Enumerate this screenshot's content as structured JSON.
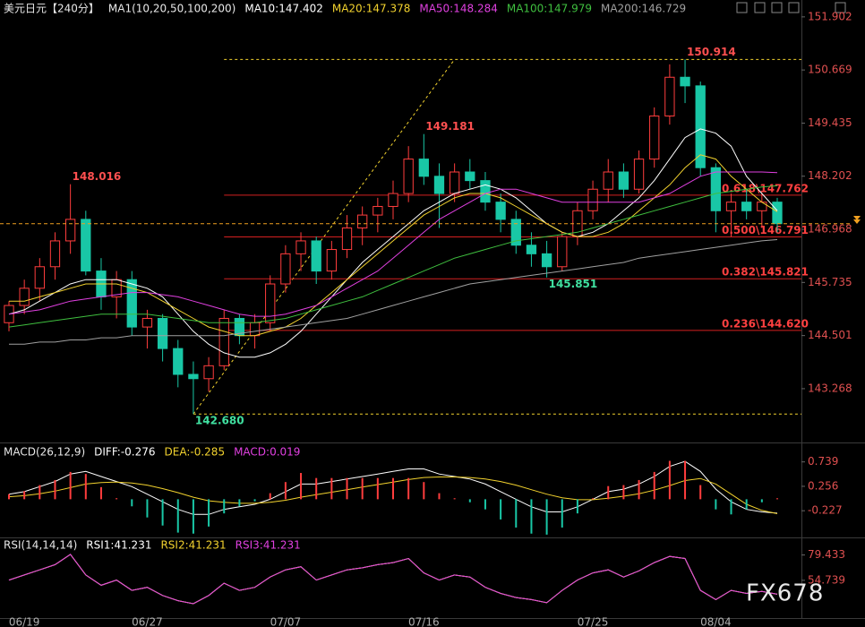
{
  "chart_data": [
    {
      "type": "candlestick",
      "title": "美元日元【240分】",
      "legend_title": "MA1(10,20,50,100,200)",
      "categories": [
        null,
        "06/19",
        null,
        null,
        null,
        null,
        null,
        null,
        null,
        "06/27",
        null,
        null,
        null,
        null,
        null,
        null,
        null,
        null,
        "07/07",
        null,
        null,
        null,
        null,
        null,
        null,
        null,
        null,
        "07/16",
        null,
        null,
        null,
        null,
        null,
        null,
        null,
        null,
        null,
        null,
        "07/25",
        null,
        null,
        null,
        null,
        null,
        null,
        null,
        "08/04",
        null,
        null,
        null,
        null
      ],
      "open": [
        144.8,
        145.2,
        145.6,
        146.1,
        146.7,
        147.2,
        146.0,
        145.4,
        145.8,
        144.7,
        144.9,
        144.2,
        143.6,
        143.5,
        143.8,
        144.9,
        144.5,
        144.8,
        145.7,
        146.4,
        146.7,
        146.0,
        146.5,
        147.0,
        147.3,
        147.5,
        147.8,
        148.6,
        148.2,
        147.8,
        148.3,
        148.1,
        147.6,
        147.2,
        146.6,
        146.4,
        146.1,
        146.8,
        147.4,
        147.9,
        148.3,
        147.9,
        148.6,
        149.6,
        150.5,
        150.3,
        148.4,
        147.4,
        147.6,
        147.4,
        147.6
      ],
      "high": [
        145.3,
        145.8,
        146.3,
        146.9,
        148.016,
        147.4,
        146.3,
        146.0,
        146.0,
        145.1,
        145.0,
        144.4,
        143.9,
        144.0,
        145.1,
        145.0,
        145.0,
        145.9,
        146.6,
        146.9,
        146.8,
        146.7,
        147.3,
        147.5,
        147.7,
        148.1,
        148.9,
        149.181,
        148.5,
        148.5,
        148.6,
        148.3,
        147.8,
        147.4,
        146.9,
        146.7,
        146.9,
        147.6,
        148.1,
        148.6,
        148.5,
        148.8,
        149.8,
        150.8,
        150.914,
        150.4,
        148.5,
        147.8,
        147.9,
        147.8,
        147.7
      ],
      "low": [
        144.6,
        145.0,
        145.3,
        145.8,
        146.4,
        145.9,
        145.1,
        144.9,
        144.5,
        144.2,
        143.9,
        143.3,
        142.68,
        143.2,
        143.7,
        144.3,
        144.2,
        144.6,
        145.5,
        146.0,
        145.7,
        145.8,
        146.3,
        146.6,
        146.9,
        147.2,
        147.6,
        148.0,
        147.0,
        147.6,
        147.9,
        147.4,
        146.9,
        146.4,
        146.1,
        145.851,
        146.0,
        146.6,
        147.2,
        147.6,
        147.7,
        147.8,
        148.4,
        149.4,
        149.9,
        148.2,
        146.9,
        146.8,
        147.2,
        147.0,
        146.9
      ],
      "close": [
        145.2,
        145.6,
        146.1,
        146.7,
        147.2,
        146.0,
        145.4,
        145.8,
        144.7,
        144.9,
        144.2,
        143.6,
        143.5,
        143.8,
        144.9,
        144.5,
        144.8,
        145.7,
        146.4,
        146.7,
        146.0,
        146.5,
        147.0,
        147.3,
        147.5,
        147.8,
        148.6,
        148.2,
        147.8,
        148.3,
        148.1,
        147.6,
        147.2,
        146.6,
        146.4,
        146.1,
        146.8,
        147.4,
        147.9,
        148.3,
        147.9,
        148.6,
        149.6,
        150.5,
        150.3,
        148.4,
        147.4,
        147.6,
        147.4,
        147.6,
        147.1
      ],
      "up_color": "#ff3d3d",
      "down_color": "#19c7a6",
      "series": [
        {
          "name": "MA10:147.402",
          "color": "#ffffff",
          "values": [
            145.0,
            145.1,
            145.3,
            145.5,
            145.7,
            145.8,
            145.8,
            145.8,
            145.7,
            145.6,
            145.4,
            145.0,
            144.6,
            144.3,
            144.1,
            144.0,
            144.0,
            144.1,
            144.3,
            144.6,
            145.0,
            145.4,
            145.8,
            146.2,
            146.5,
            146.8,
            147.1,
            147.4,
            147.6,
            147.8,
            147.9,
            148.0,
            147.9,
            147.7,
            147.4,
            147.1,
            146.9,
            146.8,
            146.9,
            147.1,
            147.4,
            147.7,
            148.1,
            148.6,
            149.1,
            149.3,
            149.2,
            148.9,
            148.2,
            147.8,
            147.402
          ]
        },
        {
          "name": "MA20:147.378",
          "color": "#f2d22e",
          "values": [
            145.3,
            145.3,
            145.4,
            145.5,
            145.6,
            145.7,
            145.7,
            145.7,
            145.6,
            145.5,
            145.3,
            145.1,
            144.9,
            144.7,
            144.6,
            144.5,
            144.5,
            144.6,
            144.7,
            144.9,
            145.2,
            145.5,
            145.8,
            146.1,
            146.4,
            146.7,
            147.0,
            147.3,
            147.5,
            147.7,
            147.8,
            147.8,
            147.7,
            147.5,
            147.3,
            147.1,
            146.9,
            146.8,
            146.8,
            146.9,
            147.1,
            147.4,
            147.7,
            148.0,
            148.4,
            148.7,
            148.6,
            148.2,
            147.9,
            147.6,
            147.378
          ]
        },
        {
          "name": "MA50:148.284",
          "color": "#e040e0",
          "values": [
            145.0,
            145.05,
            145.1,
            145.2,
            145.3,
            145.35,
            145.4,
            145.45,
            145.5,
            145.5,
            145.45,
            145.4,
            145.3,
            145.2,
            145.1,
            145.0,
            144.95,
            144.95,
            145.0,
            145.1,
            145.2,
            145.4,
            145.6,
            145.8,
            146.0,
            146.3,
            146.6,
            146.9,
            147.2,
            147.4,
            147.6,
            147.8,
            147.9,
            147.9,
            147.8,
            147.7,
            147.6,
            147.6,
            147.6,
            147.6,
            147.6,
            147.6,
            147.7,
            147.8,
            148.0,
            148.2,
            148.3,
            148.3,
            148.3,
            148.3,
            148.284
          ]
        },
        {
          "name": "MA100:147.979",
          "color": "#3fbf3f",
          "values": [
            144.7,
            144.75,
            144.8,
            144.85,
            144.9,
            144.95,
            145.0,
            145.0,
            145.0,
            145.0,
            144.95,
            144.9,
            144.85,
            144.8,
            144.8,
            144.8,
            144.8,
            144.85,
            144.9,
            145.0,
            145.1,
            145.2,
            145.3,
            145.4,
            145.55,
            145.7,
            145.85,
            146.0,
            146.15,
            146.3,
            146.4,
            146.5,
            146.6,
            146.7,
            146.75,
            146.8,
            146.85,
            146.9,
            147.0,
            147.1,
            147.2,
            147.3,
            147.4,
            147.5,
            147.6,
            147.7,
            147.8,
            147.85,
            147.9,
            147.95,
            147.979
          ]
        },
        {
          "name": "MA200:146.729",
          "color": "#a0a0a0",
          "values": [
            144.3,
            144.3,
            144.35,
            144.35,
            144.4,
            144.4,
            144.45,
            144.45,
            144.5,
            144.5,
            144.5,
            144.5,
            144.5,
            144.5,
            144.5,
            144.55,
            144.6,
            144.65,
            144.7,
            144.75,
            144.8,
            144.85,
            144.9,
            145.0,
            145.1,
            145.2,
            145.3,
            145.4,
            145.5,
            145.6,
            145.7,
            145.75,
            145.8,
            145.85,
            145.9,
            145.95,
            146.0,
            146.05,
            146.1,
            146.15,
            146.2,
            146.3,
            146.35,
            146.4,
            146.45,
            146.5,
            146.55,
            146.6,
            146.65,
            146.7,
            146.729
          ]
        }
      ],
      "fib_range": [
        142.68,
        150.914
      ],
      "fib_levels": [
        {
          "value": 147.762,
          "label": "0.618\\147.762"
        },
        {
          "value": 146.791,
          "label": "0.500\\146.791"
        },
        {
          "value": 145.821,
          "label": "0.382\\145.821"
        },
        {
          "value": 144.62,
          "label": "0.236\\144.620"
        }
      ],
      "annotations": [
        {
          "value": 148.016,
          "label": "148.016"
        },
        {
          "value": 149.181,
          "label": "149.181"
        },
        {
          "value": 150.914,
          "label": "150.914"
        },
        {
          "value": 142.68,
          "label": "142.680"
        },
        {
          "value": 145.851,
          "label": "145.851"
        }
      ],
      "ylim": [
        142.06,
        152.19
      ],
      "yticks": [
        151.902,
        150.669,
        149.435,
        148.202,
        146.968,
        145.735,
        144.501,
        143.268
      ]
    },
    {
      "type": "macd",
      "title": "MACD(26,12,9)",
      "series": [
        {
          "name": "DIFF:-0.276",
          "color": "#ffffff",
          "values": [
            0.1,
            0.15,
            0.25,
            0.35,
            0.5,
            0.55,
            0.45,
            0.35,
            0.25,
            0.1,
            -0.05,
            -0.2,
            -0.3,
            -0.3,
            -0.2,
            -0.15,
            -0.1,
            0.0,
            0.15,
            0.3,
            0.3,
            0.35,
            0.4,
            0.45,
            0.5,
            0.55,
            0.6,
            0.6,
            0.5,
            0.45,
            0.4,
            0.3,
            0.15,
            0.0,
            -0.15,
            -0.25,
            -0.25,
            -0.15,
            0.0,
            0.15,
            0.2,
            0.3,
            0.45,
            0.65,
            0.75,
            0.55,
            0.2,
            -0.05,
            -0.2,
            -0.25,
            -0.276
          ]
        },
        {
          "name": "DEA:-0.285",
          "color": "#f2d22e",
          "values": [
            0.05,
            0.07,
            0.11,
            0.16,
            0.23,
            0.3,
            0.33,
            0.34,
            0.32,
            0.28,
            0.21,
            0.13,
            0.04,
            -0.03,
            -0.06,
            -0.08,
            -0.08,
            -0.06,
            -0.02,
            0.04,
            0.09,
            0.14,
            0.19,
            0.24,
            0.29,
            0.34,
            0.39,
            0.43,
            0.44,
            0.44,
            0.43,
            0.4,
            0.35,
            0.28,
            0.19,
            0.1,
            0.03,
            -0.01,
            -0.01,
            0.02,
            0.06,
            0.11,
            0.18,
            0.27,
            0.37,
            0.41,
            0.3,
            0.1,
            -0.1,
            -0.22,
            -0.285
          ]
        },
        {
          "name": "MACD:0.019",
          "color": "#e040e0",
          "type": "bar",
          "up_color": "#ff3d3d",
          "down_color": "#19c7a6",
          "values": [
            0.1,
            0.16,
            0.28,
            0.38,
            0.54,
            0.5,
            0.24,
            0.02,
            -0.14,
            -0.36,
            -0.52,
            -0.66,
            -0.68,
            -0.54,
            -0.28,
            -0.14,
            -0.04,
            0.12,
            0.34,
            0.52,
            0.42,
            0.42,
            0.42,
            0.42,
            0.42,
            0.42,
            0.42,
            0.34,
            0.12,
            0.02,
            -0.06,
            -0.2,
            -0.4,
            -0.56,
            -0.68,
            -0.7,
            -0.56,
            -0.28,
            0.02,
            0.26,
            0.28,
            0.38,
            0.54,
            0.76,
            0.76,
            0.28,
            -0.2,
            -0.3,
            -0.2,
            -0.06,
            0.019
          ]
        }
      ],
      "ylim": [
        -0.72,
        1.07
      ],
      "yticks": [
        0.739,
        0.256,
        -0.227
      ]
    },
    {
      "type": "line",
      "title": "RSI(14,14,14)",
      "series": [
        {
          "name": "RSI1:41.231",
          "color": "#ffffff",
          "values": [
            55,
            60,
            65,
            70,
            80,
            60,
            50,
            55,
            45,
            48,
            40,
            35,
            32,
            40,
            52,
            45,
            48,
            58,
            65,
            68,
            55,
            60,
            65,
            67,
            70,
            72,
            76,
            62,
            55,
            60,
            58,
            48,
            42,
            38,
            36,
            33,
            45,
            55,
            62,
            65,
            58,
            64,
            72,
            78,
            76,
            45,
            36,
            45,
            42,
            44,
            41.231
          ]
        },
        {
          "name": "RSI2:41.231",
          "color": "#f2d22e",
          "values": [
            55,
            60,
            65,
            70,
            80,
            60,
            50,
            55,
            45,
            48,
            40,
            35,
            32,
            40,
            52,
            45,
            48,
            58,
            65,
            68,
            55,
            60,
            65,
            67,
            70,
            72,
            76,
            62,
            55,
            60,
            58,
            48,
            42,
            38,
            36,
            33,
            45,
            55,
            62,
            65,
            58,
            64,
            72,
            78,
            76,
            45,
            36,
            45,
            42,
            44,
            41.231
          ]
        },
        {
          "name": "RSI3:41.231",
          "color": "#e040e0",
          "values": [
            55,
            60,
            65,
            70,
            80,
            60,
            50,
            55,
            45,
            48,
            40,
            35,
            32,
            40,
            52,
            45,
            48,
            58,
            65,
            68,
            55,
            60,
            65,
            67,
            70,
            72,
            76,
            62,
            55,
            60,
            58,
            48,
            42,
            38,
            36,
            33,
            45,
            55,
            62,
            65,
            58,
            64,
            72,
            78,
            76,
            45,
            36,
            45,
            42,
            44,
            41.231
          ]
        }
      ],
      "ylim": [
        19.8,
        93.9
      ],
      "yticks": [
        79.433,
        54.739
      ]
    }
  ],
  "watermark": "FX678"
}
